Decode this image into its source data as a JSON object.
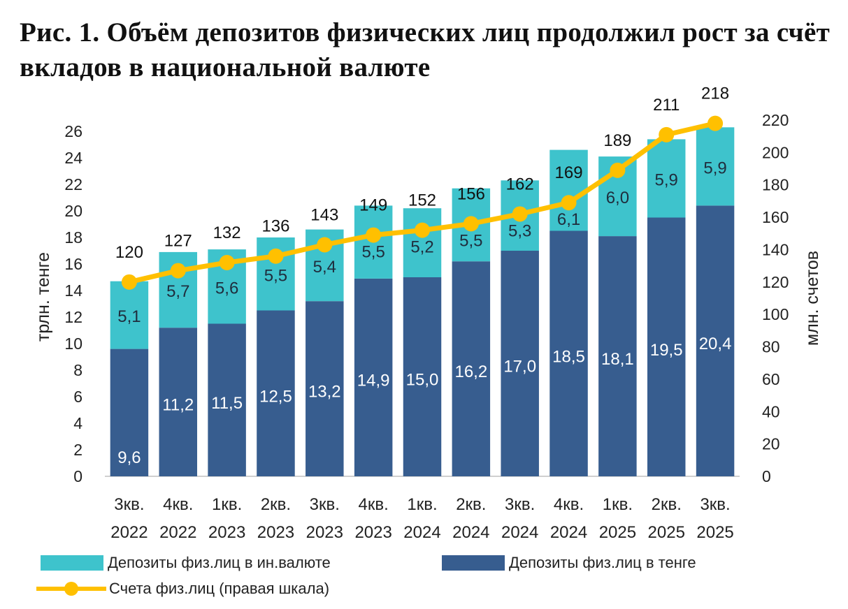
{
  "title": "Рис. 1. Объём депозитов физических лиц продолжил рост за счёт вкладов в национальной валюте",
  "colors": {
    "tenge": "#375D8F",
    "foreign": "#3EC3CC",
    "accounts": "#FFC000"
  },
  "legend": {
    "foreign": "Депозиты физ.лиц в ин.валюте",
    "tenge": "Депозиты физ.лиц в тенге",
    "accounts": "Счета физ.лиц (правая шкала)"
  },
  "chart_data": {
    "type": "bar",
    "stacked": true,
    "categories": [
      [
        "3кв.",
        "2022"
      ],
      [
        "4кв.",
        "2022"
      ],
      [
        "1кв.",
        "2023"
      ],
      [
        "2кв.",
        "2023"
      ],
      [
        "3кв.",
        "2023"
      ],
      [
        "4кв.",
        "2023"
      ],
      [
        "1кв.",
        "2024"
      ],
      [
        "2кв.",
        "2024"
      ],
      [
        "3кв.",
        "2024"
      ],
      [
        "4кв.",
        "2024"
      ],
      [
        "1кв.",
        "2025"
      ],
      [
        "2кв.",
        "2025"
      ],
      [
        "3кв.",
        "2025"
      ]
    ],
    "series": [
      {
        "name": "Депозиты физ.лиц в тенге",
        "axis": "left",
        "type": "bar",
        "values": [
          9.6,
          11.2,
          11.5,
          12.5,
          13.2,
          14.9,
          15.0,
          16.2,
          17.0,
          18.5,
          18.1,
          19.5,
          20.4
        ],
        "labels": [
          "9,6",
          "11,2",
          "11,5",
          "12,5",
          "13,2",
          "14,9",
          "15,0",
          "16,2",
          "17,0",
          "18,5",
          "18,1",
          "19,5",
          "20,4"
        ]
      },
      {
        "name": "Депозиты физ.лиц в ин.валюте",
        "axis": "left",
        "type": "bar",
        "values": [
          5.1,
          5.7,
          5.6,
          5.5,
          5.4,
          5.5,
          5.2,
          5.5,
          5.3,
          6.1,
          6.0,
          5.9,
          5.9
        ],
        "labels": [
          "5,1",
          "5,7",
          "5,6",
          "5,5",
          "5,4",
          "5,5",
          "5,2",
          "5,5",
          "5,3",
          "6,1",
          "6,0",
          "5,9",
          "5,9"
        ]
      },
      {
        "name": "Счета физ.лиц (правая шкала)",
        "axis": "right",
        "type": "line",
        "values": [
          120,
          127,
          132,
          136,
          143,
          149,
          152,
          156,
          162,
          169,
          189,
          211,
          218
        ],
        "labels": [
          "120",
          "127",
          "132",
          "136",
          "143",
          "149",
          "152",
          "156",
          "162",
          "169",
          "189",
          "211",
          "218"
        ]
      }
    ],
    "ylabel": "трлн. тенге",
    "y2label": "млн. счетов",
    "ylim": [
      0,
      26
    ],
    "y2lim": [
      0,
      220
    ],
    "yticks": [
      "0",
      "2",
      "4",
      "6",
      "8",
      "10",
      "12",
      "14",
      "16",
      "18",
      "20",
      "22",
      "24",
      "26"
    ],
    "y2ticks": [
      "0",
      "20",
      "40",
      "60",
      "80",
      "100",
      "120",
      "140",
      "160",
      "180",
      "200",
      "220"
    ],
    "grid": false,
    "legend_position": "bottom"
  }
}
